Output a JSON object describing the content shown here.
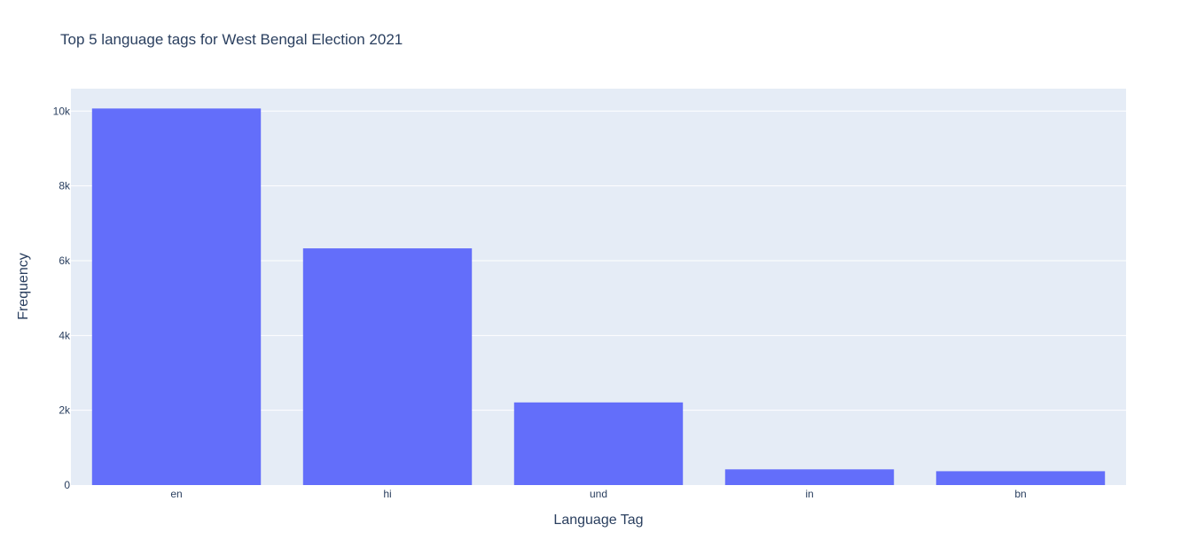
{
  "chart_data": {
    "type": "bar",
    "title": "Top 5 language tags for West Bengal Election 2021",
    "xlabel": "Language Tag",
    "ylabel": "Frequency",
    "categories": [
      "en",
      "hi",
      "und",
      "in",
      "bn"
    ],
    "values": [
      10070,
      6330,
      2210,
      420,
      370
    ],
    "ylim": [
      0,
      10600
    ],
    "yticks": [
      0,
      2000,
      4000,
      6000,
      8000,
      10000
    ],
    "ytick_labels": [
      "0",
      "2k",
      "4k",
      "6k",
      "8k",
      "10k"
    ],
    "grid": true,
    "colors": {
      "bar": "#636efa",
      "plot_bg": "#e5ecf6",
      "grid": "#ffffff",
      "text": "#2a3f5f"
    }
  }
}
